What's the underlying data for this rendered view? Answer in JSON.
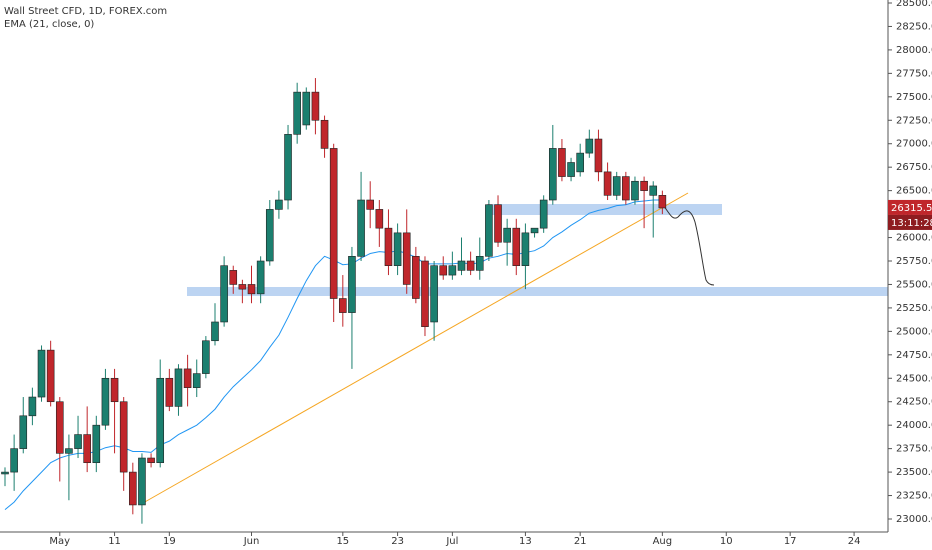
{
  "chart_data": {
    "type": "candlestick",
    "title": "Wall Street CFD, 1D, FOREX.com",
    "countdown": "13:11:28",
    "up_color": "#1b7f6f",
    "down_color": "#c0262b",
    "categories": [
      null,
      null,
      null,
      null,
      null,
      null,
      "May",
      null,
      null,
      null,
      null,
      null,
      "11",
      null,
      null,
      null,
      null,
      null,
      "19",
      null,
      null,
      null,
      null,
      null,
      null,
      null,
      null,
      "Jun",
      null,
      null,
      null,
      null,
      null,
      null,
      null,
      null,
      null,
      "15",
      null,
      null,
      null,
      null,
      null,
      "23",
      null,
      null,
      null,
      null,
      null,
      "Jul",
      null,
      null,
      null,
      null,
      null,
      null,
      null,
      "13",
      null,
      null,
      null,
      null,
      null,
      "21",
      null,
      null,
      null,
      null,
      null,
      null,
      null,
      null,
      "Aug",
      null,
      null,
      null,
      null,
      null,
      null,
      "10",
      null,
      null,
      null,
      null,
      null,
      null,
      "17",
      null,
      null,
      null,
      null,
      null,
      null,
      "24",
      null,
      null,
      null
    ],
    "open": [
      23480,
      23500,
      23750,
      24100,
      24300,
      24800,
      24250,
      23700,
      23750,
      23900,
      23600,
      24000,
      24500,
      24250,
      23500,
      23150,
      23650,
      23600,
      24500,
      24200,
      24600,
      24400,
      24550,
      24900,
      25100,
      25650,
      25500,
      25500,
      25400,
      25750,
      26300,
      26400,
      27100,
      27200,
      27550,
      27250,
      26950,
      25350,
      25200,
      25800,
      26400,
      26300,
      26100,
      25700,
      26050,
      25800,
      25750,
      25100,
      25700,
      25600,
      25650,
      25750,
      25650,
      25800,
      26350,
      25950,
      26100,
      25700,
      26050,
      26100,
      26400,
      26950,
      26650,
      26700,
      26900,
      27050,
      26700,
      26450,
      26650,
      26400,
      26600,
      26450,
      26450,
      null,
      null,
      null,
      null,
      null,
      null,
      null,
      null,
      null,
      null,
      null,
      null,
      null,
      null,
      null,
      null,
      null,
      null,
      null,
      null,
      null,
      null,
      null,
      null
    ],
    "high": [
      23550,
      23900,
      24300,
      24400,
      24850,
      24900,
      24300,
      23900,
      24100,
      24200,
      24100,
      24600,
      24600,
      24300,
      23600,
      23700,
      23700,
      24700,
      24600,
      24650,
      24750,
      24700,
      24950,
      25300,
      25800,
      25700,
      25550,
      25700,
      25800,
      26400,
      26500,
      27200,
      27650,
      27600,
      27700,
      27300,
      27000,
      25600,
      25900,
      26700,
      26600,
      26400,
      26300,
      26150,
      26300,
      25900,
      25800,
      25750,
      25800,
      25850,
      26000,
      25850,
      26000,
      26400,
      26450,
      26200,
      26200,
      26150,
      26100,
      26450,
      27200,
      27050,
      26850,
      27000,
      27150,
      27150,
      26800,
      26700,
      26700,
      26650,
      26650,
      26600,
      26500,
      null,
      null,
      null,
      null,
      null,
      null,
      null,
      null,
      null,
      null,
      null,
      null,
      null,
      null,
      null,
      null,
      null,
      null,
      null,
      null,
      null,
      null,
      null,
      null
    ],
    "low": [
      23350,
      23300,
      23700,
      24000,
      24250,
      24200,
      23400,
      23200,
      23650,
      23500,
      23500,
      23950,
      23700,
      23300,
      23050,
      22950,
      23550,
      23550,
      24150,
      24100,
      24200,
      24300,
      24500,
      24850,
      25050,
      25400,
      25300,
      25300,
      25300,
      25700,
      26200,
      26300,
      27000,
      27150,
      27100,
      26850,
      25100,
      25050,
      24600,
      25750,
      26100,
      25900,
      25600,
      25600,
      25400,
      25300,
      24950,
      24900,
      25550,
      25550,
      25600,
      25600,
      25550,
      25750,
      25900,
      25700,
      25600,
      25450,
      26000,
      26050,
      26350,
      26600,
      26600,
      26650,
      26850,
      26600,
      26400,
      26400,
      26350,
      26350,
      26100,
      26000,
      26250,
      null,
      null,
      null,
      null,
      null,
      null,
      null,
      null,
      null,
      null,
      null,
      null,
      null,
      null,
      null,
      null,
      null,
      null,
      null,
      null,
      null,
      null,
      null,
      null
    ],
    "close": [
      23500,
      23750,
      24100,
      24300,
      24800,
      24250,
      23700,
      23750,
      23900,
      23600,
      24000,
      24500,
      24250,
      23500,
      23150,
      23650,
      23600,
      24500,
      24200,
      24600,
      24400,
      24550,
      24900,
      25100,
      25700,
      25500,
      25450,
      25400,
      25750,
      26300,
      26400,
      27100,
      27550,
      27550,
      27250,
      26950,
      25350,
      25200,
      25800,
      26400,
      26300,
      26100,
      25700,
      26050,
      25500,
      25350,
      25050,
      25700,
      25600,
      25700,
      25750,
      25650,
      25800,
      26350,
      25950,
      26100,
      25700,
      26050,
      26100,
      26400,
      26950,
      26650,
      26800,
      26900,
      27050,
      26700,
      26450,
      26650,
      26400,
      26600,
      26500,
      26550,
      26315.5,
      null,
      null,
      null,
      null,
      null,
      null,
      null,
      null,
      null,
      null,
      null,
      null,
      null,
      null,
      null,
      null,
      null,
      null,
      null,
      null,
      null,
      null,
      null,
      null
    ],
    "series": [
      {
        "name": "EMA (21, close, 0)",
        "color": "#2196f3",
        "values": [
          23100,
          23180,
          23300,
          23400,
          23500,
          23600,
          23650,
          23680,
          23700,
          23700,
          23720,
          23760,
          23780,
          23760,
          23720,
          23720,
          23710,
          23790,
          23830,
          23900,
          23950,
          24000,
          24080,
          24170,
          24300,
          24410,
          24500,
          24590,
          24690,
          24830,
          24960,
          25150,
          25350,
          25540,
          25700,
          25800,
          25760,
          25710,
          25720,
          25780,
          25830,
          25850,
          25840,
          25860,
          25830,
          25790,
          25720,
          25720,
          25720,
          25720,
          25730,
          25720,
          25730,
          25780,
          25800,
          25830,
          25820,
          25840,
          25860,
          25910,
          26000,
          26060,
          26130,
          26190,
          26260,
          26290,
          26310,
          26340,
          26350,
          26380,
          26390,
          26400,
          26400,
          null,
          null,
          null,
          null,
          null,
          null,
          null,
          null,
          null,
          null,
          null,
          null,
          null,
          null,
          null,
          null,
          null,
          null,
          null,
          null,
          null,
          null,
          null,
          null
        ]
      }
    ],
    "ylim": [
      23000,
      28500
    ],
    "yticks": [
      {
        "value": 23000,
        "label": "23000.0"
      },
      {
        "value": 23250,
        "label": "23250.0"
      },
      {
        "value": 23500,
        "label": "23500.0"
      },
      {
        "value": 23750,
        "label": "23750.0"
      },
      {
        "value": 24000,
        "label": "24000.0"
      },
      {
        "value": 24250,
        "label": "24250.0"
      },
      {
        "value": 24500,
        "label": "24500.0"
      },
      {
        "value": 24750,
        "label": "24750.0"
      },
      {
        "value": 25000,
        "label": "25000.0"
      },
      {
        "value": 25250,
        "label": "25250.0"
      },
      {
        "value": 25500,
        "label": "25500.0"
      },
      {
        "value": 25750,
        "label": "25750.0"
      },
      {
        "value": 26000,
        "label": "26000.0"
      },
      {
        "value": 26250,
        "label": "26250.0"
      },
      {
        "value": 26500,
        "label": "26500.0"
      },
      {
        "value": 26750,
        "label": "26750.0"
      },
      {
        "value": 27000,
        "label": "27000.0"
      },
      {
        "value": 27250,
        "label": "27250.0"
      },
      {
        "value": 27500,
        "label": "27500.0"
      },
      {
        "value": 27750,
        "label": "27750.0"
      },
      {
        "value": 28000,
        "label": "28000.0"
      },
      {
        "value": 28250,
        "label": "28250.0"
      },
      {
        "value": 28500,
        "label": "28500.0"
      }
    ]
  }
}
